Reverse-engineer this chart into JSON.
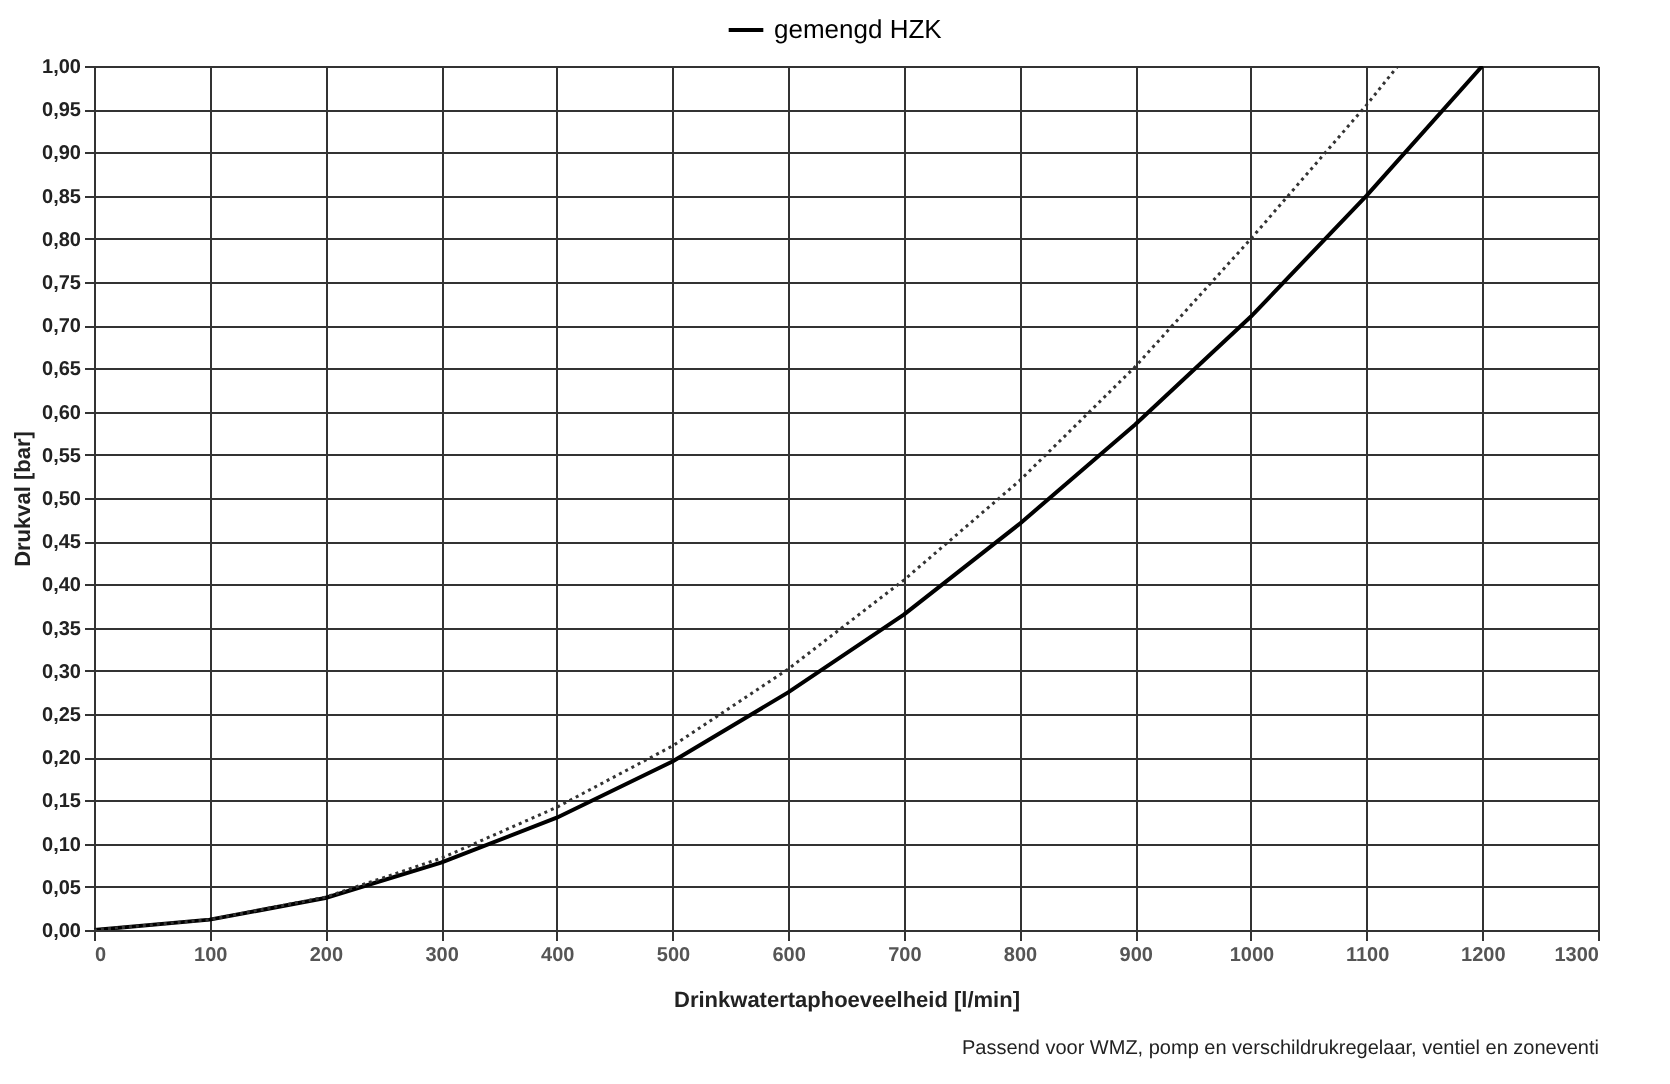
{
  "chart_data": {
    "type": "line",
    "xlabel": "Drinkwatertaphoeveelheid [l/min]",
    "ylabel": "Drukval [bar]",
    "annotations": [
      "Passend voor WMZ, pomp en verschildrukregelaar, ventiel en zoneventi"
    ],
    "xlim": [
      0,
      1300
    ],
    "xticks": [
      0,
      100,
      200,
      300,
      400,
      500,
      600,
      700,
      800,
      900,
      1000,
      1100,
      1200,
      1300
    ],
    "ylim": [
      0,
      1
    ],
    "yticks": [
      {
        "value": 0,
        "label": "0,00"
      },
      {
        "value": 0.05,
        "label": "0,05"
      },
      {
        "value": 0.1,
        "label": "0,10"
      },
      {
        "value": 0.15,
        "label": "0,15"
      },
      {
        "value": 0.2,
        "label": "0,20"
      },
      {
        "value": 0.25,
        "label": "0,25"
      },
      {
        "value": 0.3,
        "label": "0,30"
      },
      {
        "value": 0.35,
        "label": "0,35"
      },
      {
        "value": 0.4,
        "label": "0,40"
      },
      {
        "value": 0.45,
        "label": "0,45"
      },
      {
        "value": 0.5,
        "label": "0,50"
      },
      {
        "value": 0.55,
        "label": "0,55"
      },
      {
        "value": 0.6,
        "label": "0,60"
      },
      {
        "value": 0.65,
        "label": "0,65"
      },
      {
        "value": 0.7,
        "label": "0,70"
      },
      {
        "value": 0.75,
        "label": "0,75"
      },
      {
        "value": 0.8,
        "label": "0,80"
      },
      {
        "value": 0.85,
        "label": "0,85"
      },
      {
        "value": 0.9,
        "label": "0,90"
      },
      {
        "value": 0.95,
        "label": "0,95"
      },
      {
        "value": 1,
        "label": "1,00"
      }
    ],
    "grid": true,
    "legend": "top",
    "marker": "none",
    "series": [
      {
        "name": "gemengd HZK",
        "color": "#000000",
        "line_style": "solid",
        "x": [
          0,
          100,
          200,
          300,
          400,
          500,
          600,
          700,
          800,
          900,
          1000,
          1100,
          1200
        ],
        "values": [
          0,
          0.012,
          0.037,
          0.078,
          0.13,
          0.195,
          0.275,
          0.365,
          0.47,
          0.585,
          0.71,
          0.85,
          1.0
        ]
      },
      {
        "color": "#333333",
        "line_style": "dotted",
        "x": [
          0,
          100,
          200,
          300,
          400,
          500,
          600,
          700,
          800,
          900,
          1000,
          1100,
          1127
        ],
        "values": [
          0,
          0.012,
          0.038,
          0.083,
          0.142,
          0.213,
          0.302,
          0.405,
          0.52,
          0.652,
          0.8,
          0.955,
          1.0
        ]
      }
    ]
  }
}
